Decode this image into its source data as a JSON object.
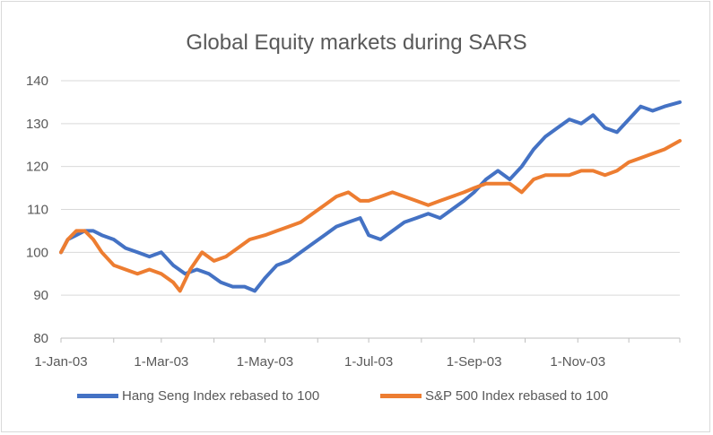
{
  "chart_data": {
    "type": "line",
    "title": "Global Equity markets during SARS",
    "xlabel": "",
    "ylabel": "",
    "ylim": [
      80,
      140
    ],
    "yticks": [
      80,
      90,
      100,
      110,
      120,
      130,
      140
    ],
    "xlim": [
      "2003-01-01",
      "2003-12-31"
    ],
    "xticks": [
      "1-Jan-03",
      "1-Mar-03",
      "1-May-03",
      "1-Jul-03",
      "1-Sep-03",
      "1-Nov-03"
    ],
    "xtick_dates": [
      "2003-01-01",
      "2003-03-01",
      "2003-05-01",
      "2003-07-01",
      "2003-09-01",
      "2003-11-01"
    ],
    "grid": "horizontal",
    "legend_position": "bottom",
    "series": [
      {
        "name": "Hang Seng Index rebased to 100",
        "color": "#4472c4",
        "points": [
          [
            "2003-01-01",
            100
          ],
          [
            "2003-01-05",
            103
          ],
          [
            "2003-01-10",
            104
          ],
          [
            "2003-01-15",
            105
          ],
          [
            "2003-01-20",
            105
          ],
          [
            "2003-01-25",
            104
          ],
          [
            "2003-02-01",
            103
          ],
          [
            "2003-02-08",
            101
          ],
          [
            "2003-02-15",
            100
          ],
          [
            "2003-02-22",
            99
          ],
          [
            "2003-03-01",
            100
          ],
          [
            "2003-03-08",
            97
          ],
          [
            "2003-03-15",
            95
          ],
          [
            "2003-03-22",
            96
          ],
          [
            "2003-03-29",
            95
          ],
          [
            "2003-04-05",
            93
          ],
          [
            "2003-04-12",
            92
          ],
          [
            "2003-04-19",
            92
          ],
          [
            "2003-04-25",
            91
          ],
          [
            "2003-05-01",
            94
          ],
          [
            "2003-05-08",
            97
          ],
          [
            "2003-05-15",
            98
          ],
          [
            "2003-05-22",
            100
          ],
          [
            "2003-05-29",
            102
          ],
          [
            "2003-06-05",
            104
          ],
          [
            "2003-06-12",
            106
          ],
          [
            "2003-06-19",
            107
          ],
          [
            "2003-06-26",
            108
          ],
          [
            "2003-07-01",
            104
          ],
          [
            "2003-07-08",
            103
          ],
          [
            "2003-07-15",
            105
          ],
          [
            "2003-07-22",
            107
          ],
          [
            "2003-07-29",
            108
          ],
          [
            "2003-08-05",
            109
          ],
          [
            "2003-08-12",
            108
          ],
          [
            "2003-08-19",
            110
          ],
          [
            "2003-08-26",
            112
          ],
          [
            "2003-09-01",
            114
          ],
          [
            "2003-09-08",
            117
          ],
          [
            "2003-09-15",
            119
          ],
          [
            "2003-09-22",
            117
          ],
          [
            "2003-09-29",
            120
          ],
          [
            "2003-10-06",
            124
          ],
          [
            "2003-10-13",
            127
          ],
          [
            "2003-10-20",
            129
          ],
          [
            "2003-10-27",
            131
          ],
          [
            "2003-11-03",
            130
          ],
          [
            "2003-11-10",
            132
          ],
          [
            "2003-11-17",
            129
          ],
          [
            "2003-11-24",
            128
          ],
          [
            "2003-12-01",
            131
          ],
          [
            "2003-12-08",
            134
          ],
          [
            "2003-12-15",
            133
          ],
          [
            "2003-12-22",
            134
          ],
          [
            "2003-12-31",
            135
          ]
        ]
      },
      {
        "name": "S&P 500 Index rebased to 100",
        "color": "#ed7d31",
        "points": [
          [
            "2003-01-01",
            100
          ],
          [
            "2003-01-05",
            103
          ],
          [
            "2003-01-10",
            105
          ],
          [
            "2003-01-15",
            105
          ],
          [
            "2003-01-20",
            103
          ],
          [
            "2003-01-25",
            100
          ],
          [
            "2003-02-01",
            97
          ],
          [
            "2003-02-08",
            96
          ],
          [
            "2003-02-15",
            95
          ],
          [
            "2003-02-22",
            96
          ],
          [
            "2003-03-01",
            95
          ],
          [
            "2003-03-08",
            93
          ],
          [
            "2003-03-12",
            91
          ],
          [
            "2003-03-18",
            96
          ],
          [
            "2003-03-25",
            100
          ],
          [
            "2003-04-01",
            98
          ],
          [
            "2003-04-08",
            99
          ],
          [
            "2003-04-15",
            101
          ],
          [
            "2003-04-22",
            103
          ],
          [
            "2003-05-01",
            104
          ],
          [
            "2003-05-08",
            105
          ],
          [
            "2003-05-15",
            106
          ],
          [
            "2003-05-22",
            107
          ],
          [
            "2003-05-29",
            109
          ],
          [
            "2003-06-05",
            111
          ],
          [
            "2003-06-12",
            113
          ],
          [
            "2003-06-19",
            114
          ],
          [
            "2003-06-26",
            112
          ],
          [
            "2003-07-01",
            112
          ],
          [
            "2003-07-08",
            113
          ],
          [
            "2003-07-15",
            114
          ],
          [
            "2003-07-22",
            113
          ],
          [
            "2003-07-29",
            112
          ],
          [
            "2003-08-05",
            111
          ],
          [
            "2003-08-12",
            112
          ],
          [
            "2003-08-19",
            113
          ],
          [
            "2003-08-26",
            114
          ],
          [
            "2003-09-01",
            115
          ],
          [
            "2003-09-08",
            116
          ],
          [
            "2003-09-15",
            116
          ],
          [
            "2003-09-22",
            116
          ],
          [
            "2003-09-29",
            114
          ],
          [
            "2003-10-06",
            117
          ],
          [
            "2003-10-13",
            118
          ],
          [
            "2003-10-20",
            118
          ],
          [
            "2003-10-27",
            118
          ],
          [
            "2003-11-03",
            119
          ],
          [
            "2003-11-10",
            119
          ],
          [
            "2003-11-17",
            118
          ],
          [
            "2003-11-24",
            119
          ],
          [
            "2003-12-01",
            121
          ],
          [
            "2003-12-08",
            122
          ],
          [
            "2003-12-15",
            123
          ],
          [
            "2003-12-22",
            124
          ],
          [
            "2003-12-31",
            126
          ]
        ]
      }
    ]
  }
}
